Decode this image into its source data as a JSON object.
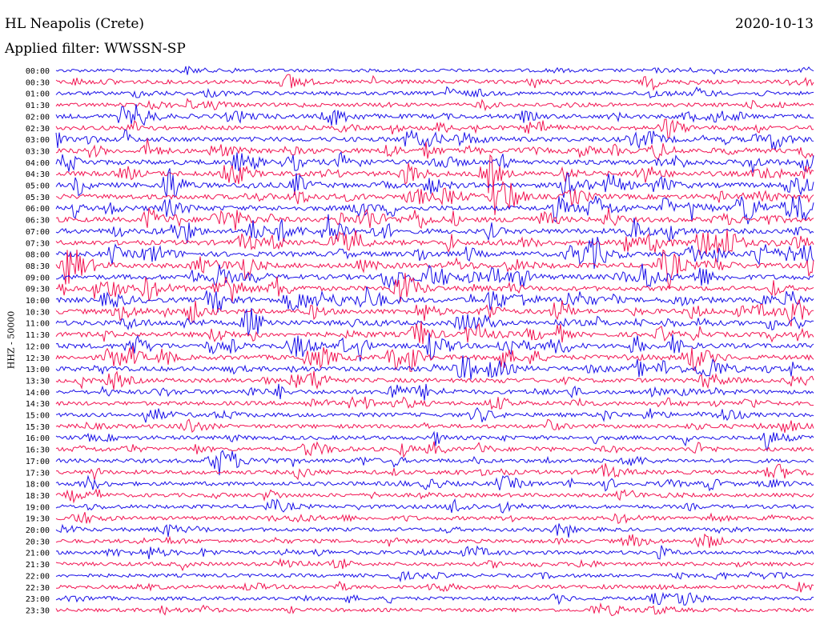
{
  "header": {
    "station": "HL Neapolis (Crete)",
    "date": "2020-10-13",
    "filter": "Applied filter: WWSSN-SP",
    "channel": "HHZ - 50000"
  },
  "colors": {
    "trace_a": "#1a10e8",
    "trace_b": "#f21452",
    "background": "#ffffff"
  },
  "chart_data": {
    "type": "line",
    "ylabel": "HHZ - 50000",
    "xlabel": "",
    "legend": "none",
    "grid": false,
    "series_colors_alternate": [
      "#1a10e8",
      "#f21452"
    ],
    "row_labels": [
      "00:00",
      "00:30",
      "01:00",
      "01:30",
      "02:00",
      "02:30",
      "03:00",
      "03:30",
      "04:00",
      "04:30",
      "05:00",
      "05:30",
      "06:00",
      "06:30",
      "07:00",
      "07:30",
      "08:00",
      "08:30",
      "09:00",
      "09:30",
      "10:00",
      "10:30",
      "11:00",
      "11:30",
      "12:00",
      "12:30",
      "13:00",
      "13:30",
      "14:00",
      "14:30",
      "15:00",
      "15:30",
      "16:00",
      "16:30",
      "17:00",
      "17:30",
      "18:00",
      "18:30",
      "19:00",
      "19:30",
      "20:00",
      "20:30",
      "21:00",
      "21:30",
      "22:00",
      "22:30",
      "23:00",
      "23:30"
    ],
    "row_activity": [
      0.3,
      0.6,
      0.5,
      0.5,
      0.8,
      0.7,
      0.9,
      0.9,
      1.0,
      1.0,
      1.0,
      1.0,
      1.0,
      1.0,
      1.0,
      1.0,
      1.0,
      1.0,
      1.0,
      0.9,
      1.0,
      1.0,
      1.0,
      0.9,
      1.0,
      0.9,
      0.9,
      0.7,
      0.7,
      0.6,
      0.6,
      0.6,
      0.6,
      0.6,
      0.6,
      0.6,
      0.6,
      0.5,
      0.5,
      0.5,
      0.5,
      0.5,
      0.5,
      0.5,
      0.4,
      0.4,
      0.4,
      0.4
    ]
  }
}
